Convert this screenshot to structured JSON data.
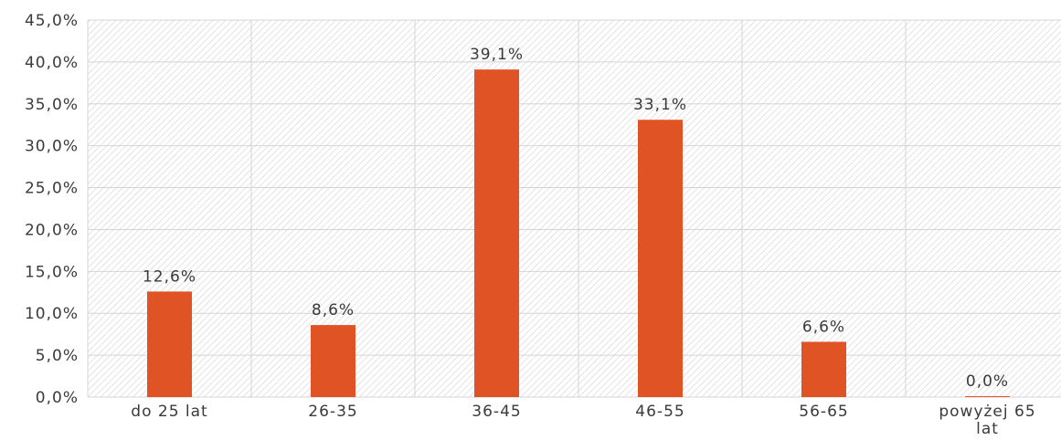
{
  "chart_data": {
    "type": "bar",
    "categories": [
      "do 25 lat",
      "26-35",
      "36-45",
      "46-55",
      "56-65",
      "powyżej 65 lat"
    ],
    "category_lines": [
      [
        "do 25 lat"
      ],
      [
        "26-35"
      ],
      [
        "36-45"
      ],
      [
        "46-55"
      ],
      [
        "56-65"
      ],
      [
        "powyżej 65",
        "lat"
      ]
    ],
    "values": [
      12.6,
      8.6,
      39.1,
      33.1,
      6.6,
      0.0
    ],
    "data_labels": [
      "12,6%",
      "8,6%",
      "39,1%",
      "33,1%",
      "6,6%",
      "0,0%"
    ],
    "yticks": [
      "0,0%",
      "5,0%",
      "10,0%",
      "15,0%",
      "20,0%",
      "25,0%",
      "30,0%",
      "35,0%",
      "40,0%",
      "45,0%"
    ],
    "ylim": [
      0,
      45
    ],
    "title": "",
    "xlabel": "",
    "ylabel": "",
    "grid": true,
    "plot_background": "diagonal-hatch",
    "bar_color": "#e05325",
    "grid_color": "#d4d4d4"
  }
}
